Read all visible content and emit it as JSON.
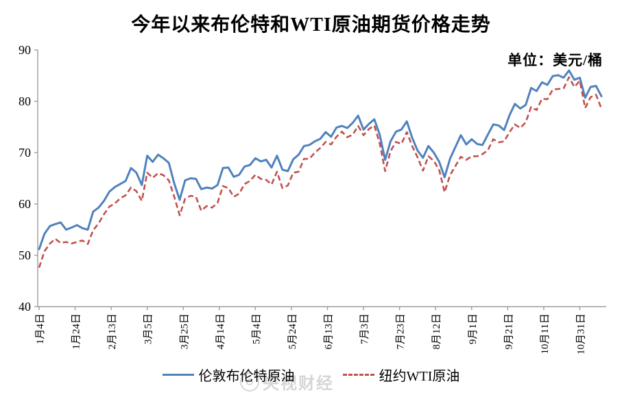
{
  "title": "今年以来布伦特和WTI原油期货价格走势",
  "unit_label": "单位：美元/桶",
  "legend": {
    "brent": "伦敦布伦特原油",
    "wti": "纽约WTI原油"
  },
  "watermark": "央视财经",
  "colors": {
    "brent": "#4f81bd",
    "wti": "#c0504d",
    "axis": "#9b9b9b",
    "text": "#000000",
    "watermark": "rgba(0,0,0,0.16)"
  },
  "chart_data": {
    "type": "line",
    "title": "今年以来布伦特和WTI原油期货价格走势",
    "xlabel": "",
    "ylabel": "美元/桶",
    "ylim": [
      40,
      90
    ],
    "y_ticks": [
      40,
      50,
      60,
      70,
      80,
      90
    ],
    "grid": false,
    "legend_position": "bottom",
    "x_tick_labels": [
      "1月4日",
      "1月24日",
      "2月13日",
      "3月5日",
      "3月25日",
      "4月14日",
      "5月4日",
      "5月24日",
      "6月13日",
      "7月3日",
      "7月23日",
      "8月12日",
      "9月1日",
      "9月21日",
      "10月11日",
      "10月31日"
    ],
    "x_tick_interval_days": 20,
    "sample_step_days": 3,
    "extra_days_after_last_tick": 12,
    "series": [
      {
        "name": "伦敦布伦特原油",
        "style": "solid",
        "color": "#4f81bd",
        "values": [
          51.2,
          54.2,
          55.7,
          56.1,
          56.4,
          55.0,
          55.4,
          55.9,
          55.3,
          55.0,
          58.5,
          59.3,
          60.6,
          62.4,
          63.3,
          63.9,
          64.5,
          67.0,
          66.1,
          63.7,
          69.4,
          68.2,
          69.6,
          68.9,
          68.0,
          64.0,
          60.8,
          64.6,
          65.0,
          64.9,
          62.9,
          63.2,
          63.0,
          63.7,
          67.0,
          67.1,
          65.3,
          65.7,
          67.3,
          67.6,
          68.9,
          68.3,
          68.6,
          67.1,
          69.4,
          66.7,
          66.4,
          68.7,
          69.6,
          71.3,
          71.5,
          72.2,
          72.7,
          74.0,
          73.1,
          74.9,
          75.2,
          74.8,
          75.8,
          77.2,
          74.5,
          75.6,
          76.5,
          73.5,
          68.6,
          72.2,
          74.1,
          74.5,
          76.1,
          72.9,
          70.4,
          69.0,
          71.3,
          70.0,
          68.2,
          65.2,
          68.8,
          71.1,
          73.4,
          71.6,
          72.6,
          71.7,
          71.5,
          73.5,
          75.5,
          75.3,
          74.4,
          77.3,
          79.5,
          78.6,
          79.3,
          82.6,
          82.0,
          83.7,
          83.2,
          84.9,
          85.1,
          84.6,
          86.0,
          84.2,
          84.6,
          80.7,
          82.8,
          83.0,
          81.0
        ]
      },
      {
        "name": "纽约WTI原油",
        "style": "dashed",
        "color": "#c0504d",
        "values": [
          47.6,
          50.8,
          52.3,
          53.2,
          52.4,
          52.6,
          52.3,
          52.6,
          52.9,
          52.2,
          54.9,
          56.2,
          58.0,
          59.5,
          60.1,
          61.1,
          61.7,
          63.2,
          62.5,
          60.6,
          66.1,
          65.1,
          66.0,
          65.6,
          64.6,
          61.4,
          57.8,
          61.0,
          61.6,
          61.4,
          58.7,
          59.6,
          59.3,
          60.2,
          63.5,
          63.1,
          61.4,
          62.0,
          63.9,
          64.5,
          65.7,
          64.9,
          64.7,
          63.8,
          66.3,
          63.1,
          63.6,
          66.1,
          66.3,
          68.8,
          68.8,
          70.0,
          70.9,
          72.1,
          71.6,
          73.1,
          74.1,
          73.0,
          73.5,
          75.2,
          73.4,
          74.6,
          75.3,
          71.8,
          66.4,
          70.3,
          72.1,
          71.7,
          74.0,
          71.3,
          69.1,
          66.5,
          69.3,
          68.4,
          66.6,
          62.3,
          65.6,
          67.4,
          69.2,
          68.6,
          69.3,
          69.3,
          69.7,
          70.5,
          72.6,
          72.0,
          72.2,
          74.0,
          75.5,
          74.8,
          75.9,
          78.9,
          78.3,
          80.5,
          80.4,
          82.3,
          82.4,
          82.5,
          84.7,
          82.8,
          84.0,
          78.7,
          80.8,
          81.3,
          78.6
        ]
      }
    ]
  }
}
